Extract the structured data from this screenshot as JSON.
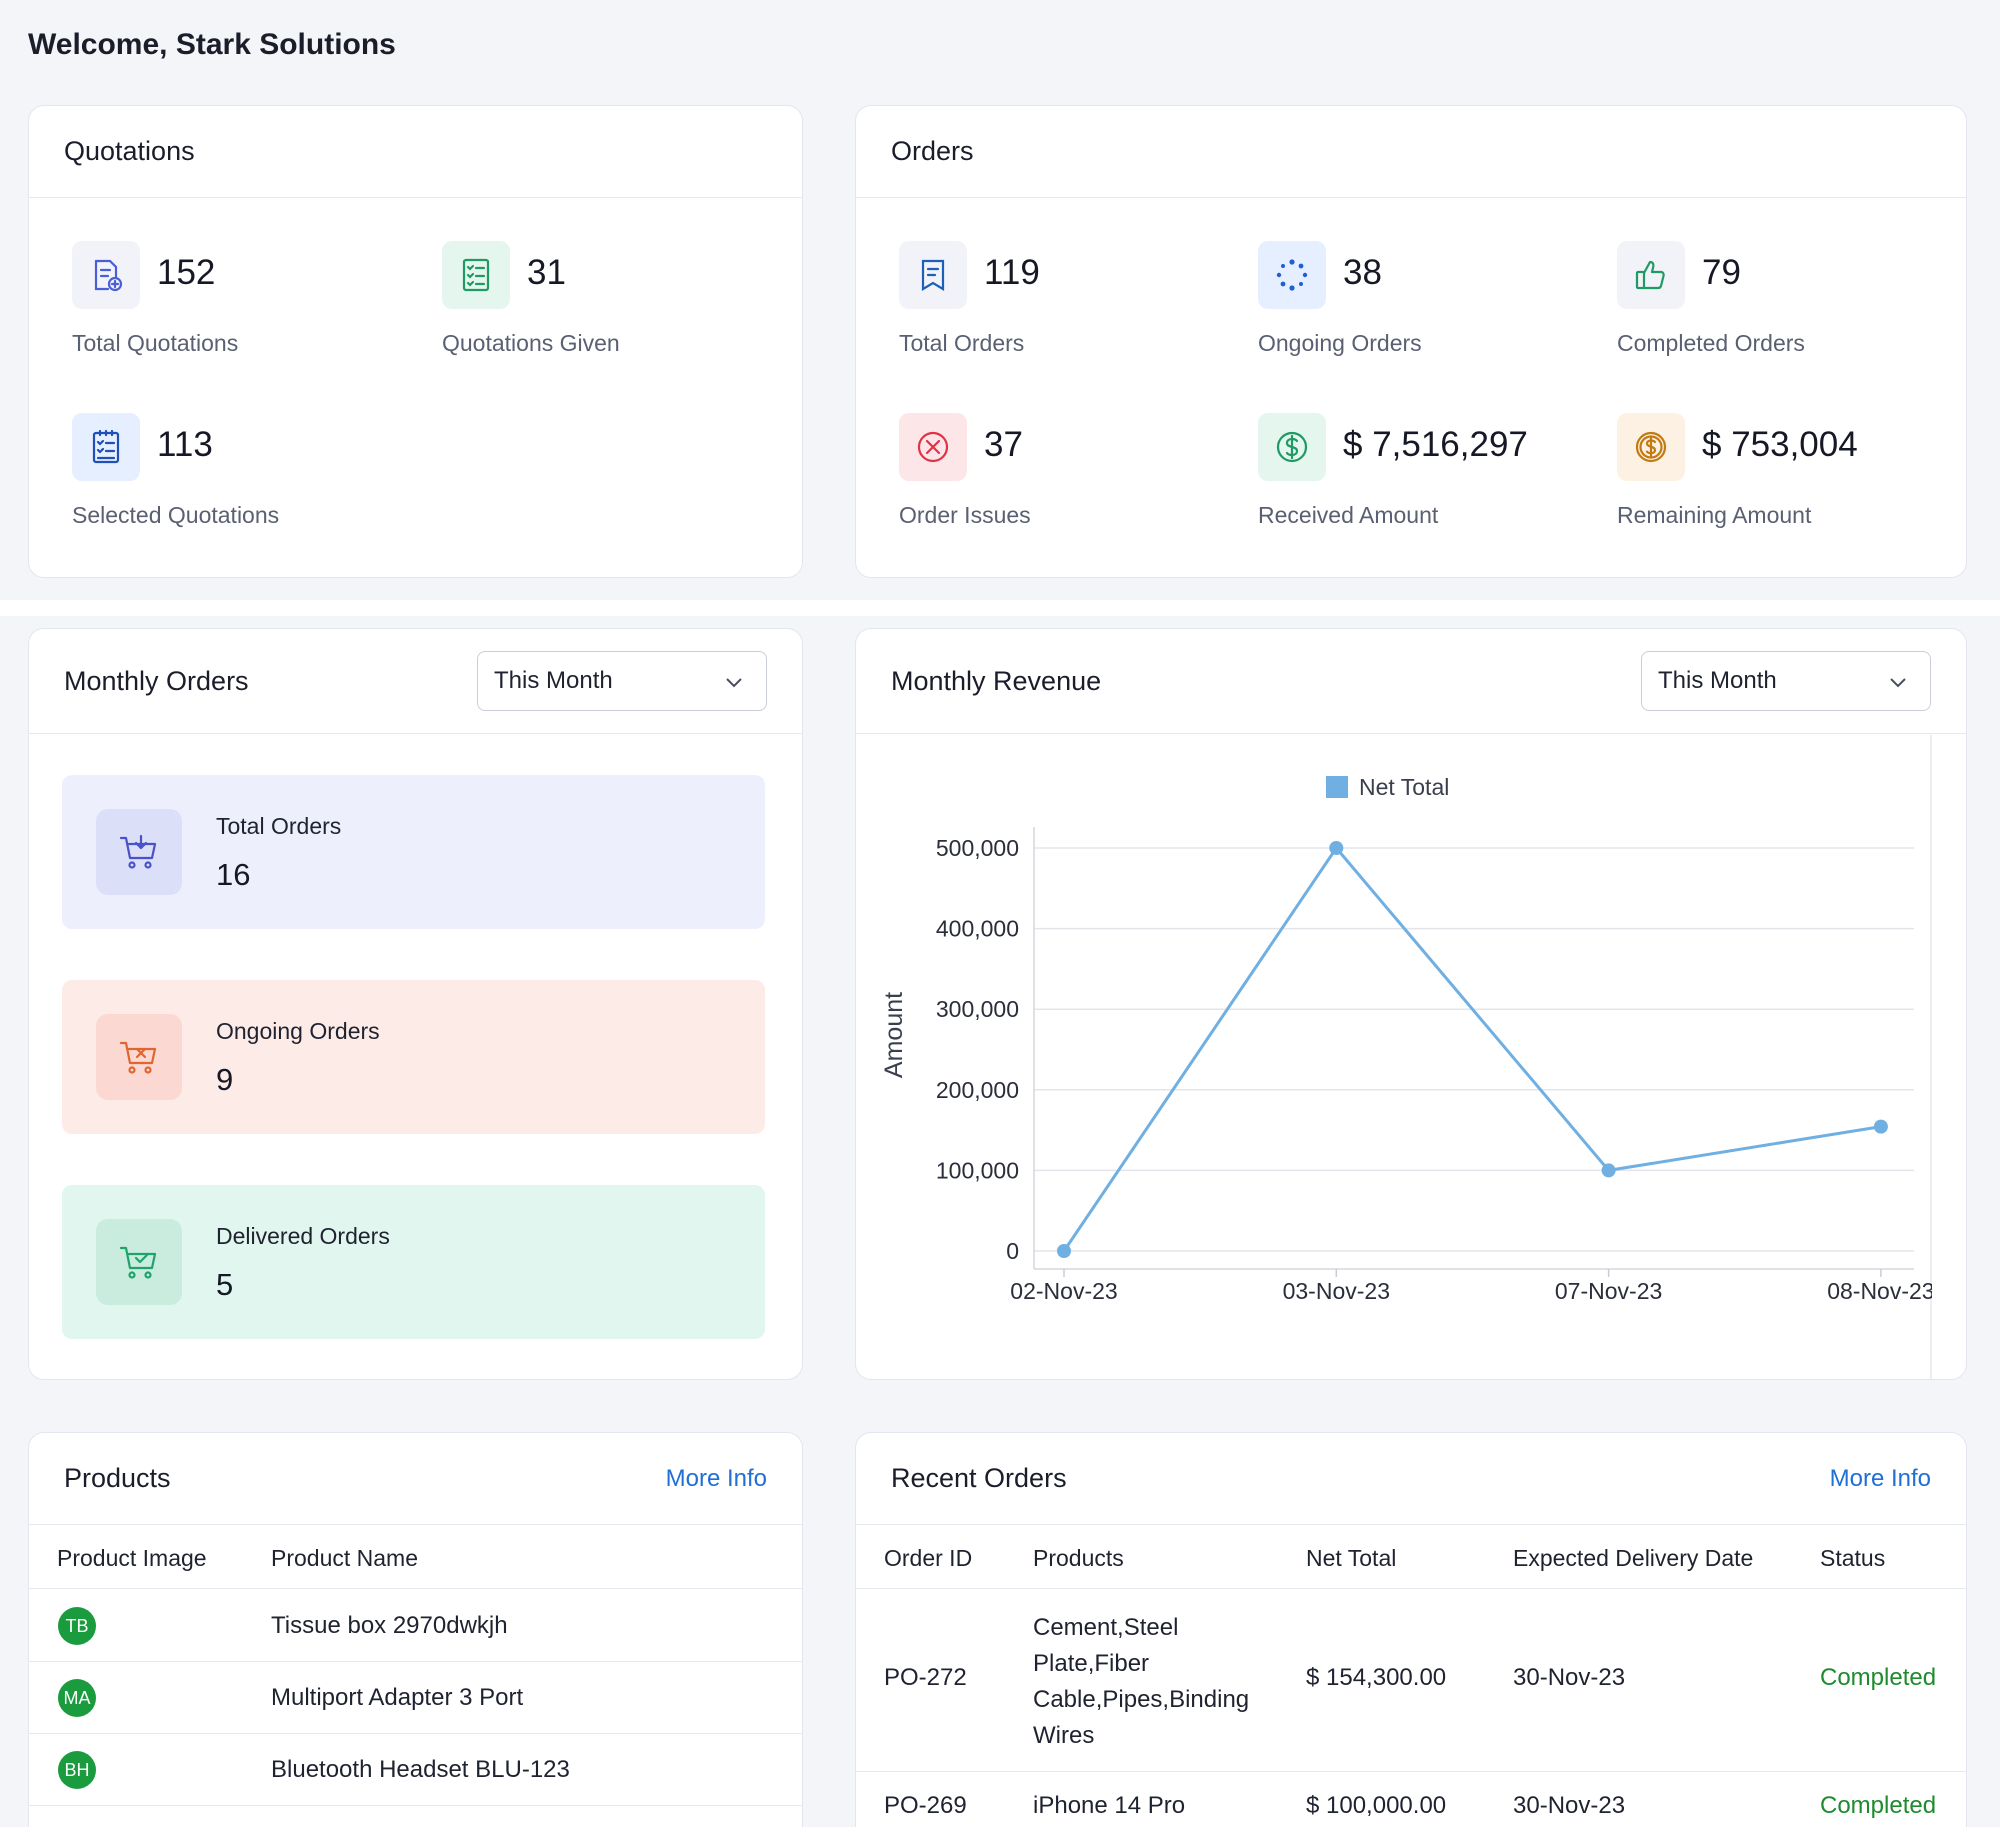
{
  "header": {
    "welcome": "Welcome, Stark Solutions"
  },
  "quotations": {
    "title": "Quotations",
    "stats": [
      {
        "value": "152",
        "label": "Total Quotations",
        "icon": "document-add-icon"
      },
      {
        "value": "31",
        "label": "Quotations Given",
        "icon": "checklist-icon"
      },
      {
        "value": "113",
        "label": "Selected Quotations",
        "icon": "clipboard-list-icon"
      }
    ]
  },
  "orders": {
    "title": "Orders",
    "stats": [
      {
        "value": "119",
        "label": "Total Orders",
        "icon": "receipt-icon"
      },
      {
        "value": "38",
        "label": "Ongoing Orders",
        "icon": "loading-dots-icon"
      },
      {
        "value": "79",
        "label": "Completed Orders",
        "icon": "thumbs-up-icon"
      },
      {
        "value": "37",
        "label": "Order Issues",
        "icon": "x-circle-icon"
      },
      {
        "value": "$ 7,516,297",
        "label": "Received Amount",
        "icon": "dollar-circle-icon"
      },
      {
        "value": "$ 753,004",
        "label": "Remaining Amount",
        "icon": "dollar-coin-icon"
      }
    ]
  },
  "monthly_orders": {
    "title": "Monthly Orders",
    "filter": "This Month",
    "items": [
      {
        "label": "Total Orders",
        "value": "16",
        "icon": "cart-download-icon"
      },
      {
        "label": "Ongoing Orders",
        "value": "9",
        "icon": "cart-x-icon"
      },
      {
        "label": "Delivered Orders",
        "value": "5",
        "icon": "cart-check-icon"
      }
    ]
  },
  "monthly_revenue": {
    "title": "Monthly Revenue",
    "filter": "This Month"
  },
  "chart_data": {
    "type": "line",
    "title": "",
    "xlabel": "",
    "ylabel": "Amount",
    "legend": "top-center",
    "grid": true,
    "x": [
      "02-Nov-23",
      "03-Nov-23",
      "07-Nov-23",
      "08-Nov-23"
    ],
    "y_ticks": [
      "0",
      "100,000",
      "200,000",
      "300,000",
      "400,000",
      "500,000"
    ],
    "ylim": [
      0,
      500000
    ],
    "series": [
      {
        "name": "Net Total",
        "values": [
          0,
          500000,
          100000,
          154300
        ],
        "color": "#6fafe2"
      }
    ]
  },
  "products": {
    "title": "Products",
    "more": "More Info",
    "columns": [
      "Product Image",
      "Product Name"
    ],
    "rows": [
      {
        "initials": "TB",
        "name": "Tissue box 2970dwkjh"
      },
      {
        "initials": "MA",
        "name": "Multiport Adapter 3 Port"
      },
      {
        "initials": "BH",
        "name": "Bluetooth Headset BLU-123"
      }
    ]
  },
  "recent_orders": {
    "title": "Recent Orders",
    "more": "More Info",
    "columns": [
      "Order ID",
      "Products",
      "Net Total",
      "Expected Delivery Date",
      "Status"
    ],
    "rows": [
      {
        "id": "PO-272",
        "products": "Cement,Steel Plate,Fiber Cable,Pipes,Binding Wires",
        "total": "$ 154,300.00",
        "date": "30-Nov-23",
        "status": "Completed"
      },
      {
        "id": "PO-269",
        "products": "iPhone 14 Pro",
        "total": "$ 100,000.00",
        "date": "30-Nov-23",
        "status": "Completed"
      }
    ]
  },
  "colors": {
    "accent": "#1f6fd6",
    "status_completed": "#1f8b2e",
    "avatar": "#1a9b3d"
  }
}
